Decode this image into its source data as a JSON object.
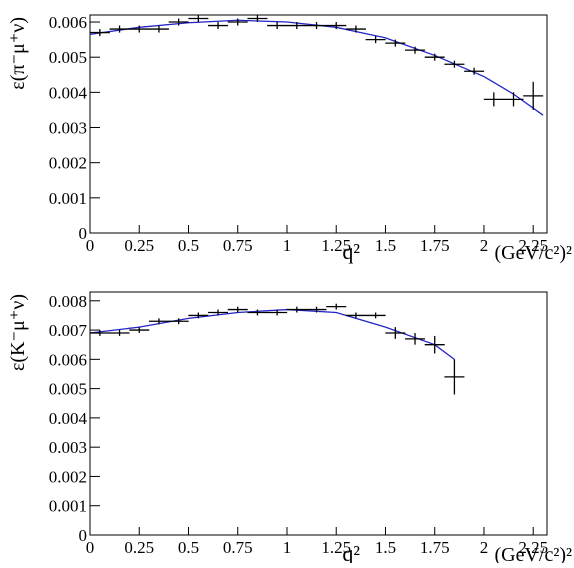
{
  "chart_data": [
    {
      "type": "errorbar",
      "ylabel": "ε(π⁻μ⁺ν)",
      "xlabel": "q²",
      "xunit": "(GeV/c²)²",
      "x": [
        0.05,
        0.15,
        0.25,
        0.35,
        0.45,
        0.55,
        0.65,
        0.75,
        0.85,
        0.95,
        1.05,
        1.15,
        1.25,
        1.35,
        1.45,
        1.55,
        1.65,
        1.75,
        1.85,
        1.95,
        2.05,
        2.15,
        2.25
      ],
      "values": [
        0.0057,
        0.0058,
        0.0058,
        0.0058,
        0.006,
        0.0061,
        0.0059,
        0.006,
        0.0061,
        0.0059,
        0.0059,
        0.0059,
        0.0059,
        0.0058,
        0.0055,
        0.0054,
        0.0052,
        0.005,
        0.0048,
        0.0046,
        0.0038,
        0.0038,
        0.0039
      ],
      "errors": [
        0.0001,
        0.0001,
        0.0001,
        0.0001,
        0.0001,
        0.0001,
        0.0001,
        0.0001,
        0.0001,
        0.0001,
        0.0001,
        0.0001,
        0.0001,
        0.0001,
        0.0001,
        0.0001,
        0.0001,
        0.0001,
        0.0001,
        0.0001,
        0.0002,
        0.0002,
        0.0004
      ],
      "color": "#000000",
      "fit": {
        "x": [
          0,
          0.25,
          0.5,
          0.75,
          1,
          1.25,
          1.5,
          1.75,
          2,
          2.15,
          2.3
        ],
        "values": [
          0.00565,
          0.00585,
          0.00598,
          0.00605,
          0.006,
          0.00585,
          0.00555,
          0.00505,
          0.00445,
          0.00395,
          0.00335
        ],
        "color": "#2323c8"
      },
      "xlim": [
        0,
        2.32
      ],
      "ylim": [
        0,
        0.0062
      ],
      "xticks": [
        0,
        0.25,
        0.5,
        0.75,
        1,
        1.25,
        1.5,
        1.75,
        2,
        2.25
      ],
      "yticks": [
        0,
        0.001,
        0.002,
        0.003,
        0.004,
        0.005,
        0.006
      ]
    },
    {
      "type": "errorbar",
      "ylabel": "ε(K⁻μ⁺ν)",
      "xlabel": "q²",
      "xunit": "(GeV/c²)²",
      "x": [
        0.05,
        0.15,
        0.25,
        0.35,
        0.45,
        0.55,
        0.65,
        0.75,
        0.85,
        0.95,
        1.05,
        1.15,
        1.25,
        1.35,
        1.45,
        1.55,
        1.65,
        1.75,
        1.85
      ],
      "values": [
        0.0069,
        0.0069,
        0.007,
        0.0073,
        0.0073,
        0.0075,
        0.0076,
        0.0077,
        0.0076,
        0.0076,
        0.0077,
        0.0077,
        0.0078,
        0.0075,
        0.0075,
        0.0069,
        0.0067,
        0.0065,
        0.0054
      ],
      "errors": [
        0.0001,
        0.0001,
        0.0001,
        0.0001,
        0.0001,
        0.0001,
        0.0001,
        0.0001,
        0.0001,
        0.0001,
        0.0001,
        0.0001,
        0.0001,
        0.0001,
        0.0001,
        0.0002,
        0.0002,
        0.0003,
        0.0006
      ],
      "color": "#000000",
      "fit": {
        "x": [
          0,
          0.25,
          0.5,
          0.75,
          1,
          1.25,
          1.5,
          1.75,
          1.85
        ],
        "values": [
          0.0069,
          0.0071,
          0.0074,
          0.0076,
          0.0077,
          0.0076,
          0.0071,
          0.0065,
          0.006
        ],
        "color": "#2323c8"
      },
      "xlim": [
        0,
        2.32
      ],
      "ylim": [
        0,
        0.0083
      ],
      "xticks": [
        0,
        0.25,
        0.5,
        0.75,
        1,
        1.25,
        1.5,
        1.75,
        2,
        2.25
      ],
      "yticks": [
        0,
        0.001,
        0.002,
        0.003,
        0.004,
        0.005,
        0.006,
        0.007,
        0.008
      ]
    }
  ]
}
